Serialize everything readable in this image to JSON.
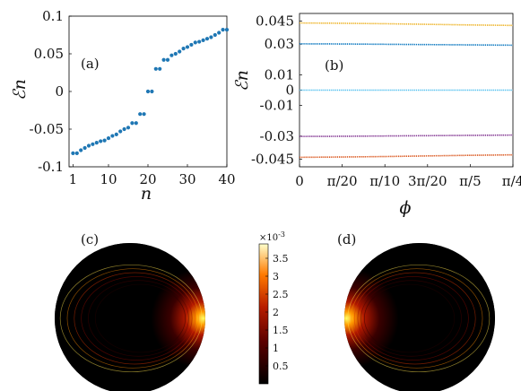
{
  "chart_data": [
    {
      "type": "scatter",
      "panel_label": "(a)",
      "xlabel": "n",
      "ylabel": "ℰn",
      "xlim": [
        0,
        40
      ],
      "ylim": [
        -0.1,
        0.1
      ],
      "xticks": [
        "1",
        "10",
        "20",
        "30",
        "40"
      ],
      "yticks": [
        "-0.1",
        "-0.05",
        "0",
        "0.05",
        "0.1"
      ],
      "marker_color": "#1f77b4",
      "series": [
        {
          "x": [
            1,
            2,
            3,
            4,
            5,
            6,
            7,
            8,
            9,
            10,
            11,
            12,
            13,
            14,
            15,
            16,
            17,
            18,
            19,
            20,
            21,
            22,
            23,
            24,
            25,
            26,
            27,
            28,
            29,
            30,
            31,
            32,
            33,
            34,
            35,
            36,
            37,
            38,
            39,
            40
          ],
          "values": [
            -0.082,
            -0.082,
            -0.078,
            -0.075,
            -0.072,
            -0.07,
            -0.068,
            -0.066,
            -0.065,
            -0.062,
            -0.059,
            -0.057,
            -0.053,
            -0.05,
            -0.048,
            -0.042,
            -0.042,
            -0.03,
            -0.03,
            0,
            0,
            0.03,
            0.03,
            0.042,
            0.042,
            0.048,
            0.05,
            0.053,
            0.057,
            0.059,
            0.062,
            0.065,
            0.066,
            0.068,
            0.07,
            0.072,
            0.075,
            0.078,
            0.082,
            0.082
          ]
        }
      ]
    },
    {
      "type": "line",
      "panel_label": "(b)",
      "xlabel": "ϕ",
      "ylabel": "ℰn",
      "xlim": [
        0,
        0.7854
      ],
      "ylim": [
        -0.05,
        0.05
      ],
      "xticks": [
        "0",
        "π/20",
        "π/10",
        "3π/20",
        "π/5",
        "π/4"
      ],
      "yticks": [
        "0.045",
        "0.03",
        "0.01",
        "0",
        "-0.01",
        "-0.03",
        "-0.045"
      ],
      "ytick_values": [
        0.045,
        0.03,
        0.01,
        0,
        -0.01,
        -0.03,
        -0.045
      ],
      "x": [
        0,
        0.157,
        0.314,
        0.471,
        0.628,
        0.785
      ],
      "series": [
        {
          "color": "#edb120",
          "values": [
            0.0438,
            0.0436,
            0.0433,
            0.0429,
            0.0425,
            0.0422
          ]
        },
        {
          "color": "#0072bd",
          "values": [
            0.0302,
            0.0301,
            0.0299,
            0.0297,
            0.0295,
            0.0293
          ]
        },
        {
          "color": "#4dbeee",
          "values": [
            0,
            0,
            0,
            0,
            0,
            0
          ]
        },
        {
          "color": "#7e2f8e",
          "values": [
            -0.0302,
            -0.0301,
            -0.0299,
            -0.0297,
            -0.0295,
            -0.0293
          ]
        },
        {
          "color": "#d95319",
          "values": [
            -0.0438,
            -0.0436,
            -0.0433,
            -0.0429,
            -0.0425,
            -0.0422
          ]
        }
      ]
    },
    {
      "type": "heatmap",
      "panel_label": "(c)",
      "highlight_side": "right"
    },
    {
      "type": "heatmap",
      "panel_label": "(d)",
      "highlight_side": "left"
    }
  ],
  "colorbar": {
    "exponent_label": "×10",
    "exponent_power": "-3",
    "ticks": [
      "3.5",
      "3",
      "2.5",
      "2",
      "1.5",
      "1",
      "0.5"
    ],
    "tick_values": [
      3.5,
      3,
      2.5,
      2,
      1.5,
      1,
      0.5
    ],
    "min": 0,
    "max": 3.9
  }
}
